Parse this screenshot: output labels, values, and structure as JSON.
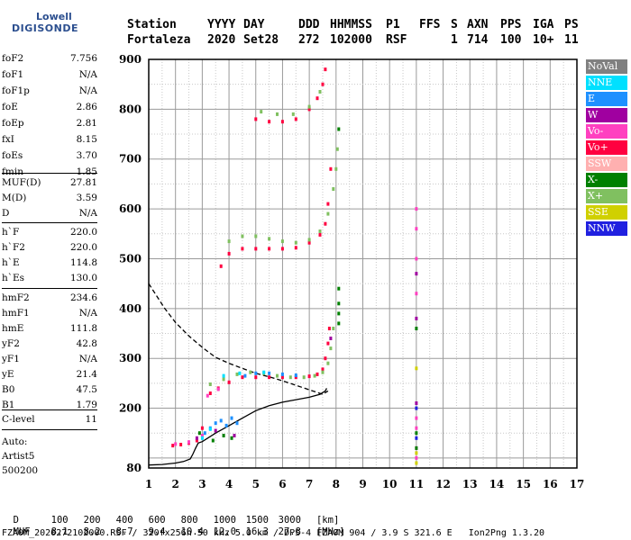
{
  "logo": {
    "lowell": "Lowell",
    "digisonde": "DIGISONDE"
  },
  "header": {
    "labels": [
      "Station",
      "YYYY",
      "DAY",
      "DDD",
      "HHMMSS",
      "P1",
      "FFS",
      "S",
      "AXN",
      "PPS",
      "IGA",
      "PS"
    ],
    "values": [
      "Fortaleza",
      "2020",
      "Set28",
      "272",
      "102000",
      "RSF",
      "1",
      "714",
      "100",
      "10+",
      "11"
    ]
  },
  "params": {
    "g1": [
      {
        "name": "foF2",
        "value": "7.756"
      },
      {
        "name": "foF1",
        "value": "N/A"
      },
      {
        "name": "foF1p",
        "value": "N/A"
      },
      {
        "name": "foE",
        "value": "2.86"
      },
      {
        "name": "foEp",
        "value": "2.81"
      },
      {
        "name": "fxI",
        "value": "8.15"
      },
      {
        "name": "foEs",
        "value": "3.70"
      },
      {
        "name": "fmin",
        "value": "1.85"
      }
    ],
    "g2": [
      {
        "name": "MUF(D)",
        "value": "27.81"
      },
      {
        "name": "M(D)",
        "value": "3.59"
      },
      {
        "name": "D",
        "value": "N/A"
      }
    ],
    "g3": [
      {
        "name": "h`F",
        "value": "220.0"
      },
      {
        "name": "h`F2",
        "value": "220.0"
      },
      {
        "name": "h`E",
        "value": "114.8"
      },
      {
        "name": "h`Es",
        "value": "130.0"
      }
    ],
    "g4": [
      {
        "name": "hmF2",
        "value": "234.6"
      },
      {
        "name": "hmF1",
        "value": "N/A"
      },
      {
        "name": "hmE",
        "value": "111.8"
      },
      {
        "name": "yF2",
        "value": "42.8"
      },
      {
        "name": "yF1",
        "value": "N/A"
      },
      {
        "name": "yE",
        "value": "21.4"
      },
      {
        "name": "B0",
        "value": "47.5"
      },
      {
        "name": "B1",
        "value": "1.79"
      }
    ],
    "g5": [
      {
        "name": "C-level",
        "value": "11"
      }
    ]
  },
  "autoscale": {
    "line1": "Auto:",
    "line2": "Artist5",
    "line3": "500200"
  },
  "legend": [
    {
      "label": "NoVal",
      "color": "#808080"
    },
    {
      "label": "NNE",
      "color": "#00e0ff"
    },
    {
      "label": "E",
      "color": "#1e90ff"
    },
    {
      "label": "W",
      "color": "#a000a0"
    },
    {
      "label": "Vo-",
      "color": "#ff40c0"
    },
    {
      "label": "Vo+",
      "color": "#ff0040"
    },
    {
      "label": "SSW",
      "color": "#ffb0b0"
    },
    {
      "label": "X-",
      "color": "#008000"
    },
    {
      "label": "X+",
      "color": "#80c060"
    },
    {
      "label": "SSE",
      "color": "#d0d000"
    },
    {
      "label": "NNW",
      "color": "#2020e0"
    }
  ],
  "muf_table": {
    "d_label": "D",
    "d_values": [
      "100",
      "200",
      "400",
      "600",
      "800",
      "1000",
      "1500",
      "3000"
    ],
    "d_unit": "[km]",
    "muf_label": "MUF",
    "muf_values": [
      "8.1",
      "8.2",
      "8.7",
      "9.4",
      "10.4",
      "12.0",
      "16.3",
      "27.8"
    ],
    "muf_unit": "[MHz]"
  },
  "footer": "FZA0M_2020272102000.RSF / 320fx256h 50 kHz 5.0 km / DPS-4 FZA0M 904 / 3.9 S 321.6 E   Ion2Png 1.3.20",
  "chart_data": {
    "type": "scatter",
    "xlim": [
      1,
      17
    ],
    "ylim": [
      80,
      900
    ],
    "x_ticks": [
      "1",
      "2",
      "3",
      "4",
      "5",
      "6",
      "7",
      "8",
      "9",
      "10",
      "11",
      "12",
      "13",
      "14",
      "15",
      "16",
      "17"
    ],
    "y_ticks": [
      "80",
      "200",
      "300",
      "400",
      "500",
      "600",
      "700",
      "800",
      "900"
    ],
    "grid": true,
    "series": [
      {
        "name": "Vo+",
        "color": "#ff0040",
        "x": [
          1.9,
          2.2,
          2.5,
          2.8,
          3.0,
          3.3,
          3.6,
          4.0,
          4.5,
          5.0,
          5.5,
          6.0,
          6.5,
          7.0,
          7.3,
          7.5,
          7.6,
          7.7,
          7.75,
          3.7,
          4.0,
          4.5,
          5.0,
          5.5,
          6.0,
          6.5,
          7.0,
          7.4,
          7.6,
          7.7,
          7.8,
          5.0,
          5.5,
          6.0,
          6.5,
          7.0,
          7.3,
          7.5,
          7.6
        ],
        "y": [
          125,
          127,
          130,
          135,
          160,
          230,
          240,
          252,
          262,
          262,
          262,
          262,
          262,
          264,
          268,
          278,
          300,
          330,
          360,
          485,
          510,
          520,
          520,
          520,
          520,
          522,
          532,
          548,
          570,
          610,
          680,
          780,
          775,
          775,
          780,
          800,
          822,
          850,
          880
        ]
      },
      {
        "name": "X+",
        "color": "#80c060",
        "x": [
          3.3,
          3.8,
          4.3,
          4.8,
          5.3,
          5.8,
          6.3,
          6.8,
          7.2,
          7.5,
          7.7,
          7.8,
          7.9,
          4.0,
          4.5,
          5.0,
          5.5,
          6.0,
          6.5,
          7.0,
          7.4,
          7.7,
          7.9,
          8.0,
          8.05,
          5.2,
          5.8,
          6.4,
          7.0,
          7.4
        ],
        "y": [
          248,
          258,
          268,
          272,
          270,
          265,
          262,
          262,
          265,
          272,
          290,
          320,
          360,
          535,
          545,
          545,
          540,
          535,
          532,
          538,
          555,
          590,
          640,
          680,
          720,
          795,
          790,
          790,
          805,
          835
        ]
      },
      {
        "name": "E",
        "color": "#1e90ff",
        "x": [
          3.1,
          3.3,
          3.5,
          3.7,
          3.9,
          4.1,
          4.3,
          4.6,
          5.0,
          5.5,
          6.0,
          6.5
        ],
        "y": [
          150,
          160,
          170,
          175,
          165,
          180,
          170,
          265,
          270,
          270,
          268,
          266
        ]
      },
      {
        "name": "Vo-",
        "color": "#ff40c0",
        "x": [
          2.0,
          2.5,
          3.0,
          3.2,
          3.6,
          11.0,
          11.0,
          11.0,
          11.0,
          11.0,
          11.0,
          11.0,
          11.0
        ],
        "y": [
          128,
          132,
          145,
          225,
          238,
          100,
          120,
          160,
          180,
          430,
          500,
          560,
          600
        ]
      },
      {
        "name": "X-",
        "color": "#008000",
        "x": [
          2.9,
          3.4,
          3.8,
          4.1,
          8.1,
          8.1,
          8.1,
          8.1,
          8.1,
          11.0,
          11.0,
          11.0
        ],
        "y": [
          150,
          135,
          145,
          140,
          370,
          390,
          410,
          440,
          760,
          120,
          150,
          360
        ]
      },
      {
        "name": "W",
        "color": "#a000a0",
        "x": [
          2.8,
          3.5,
          4.2,
          7.8,
          11.0,
          11.0,
          11.0
        ],
        "y": [
          140,
          155,
          145,
          340,
          210,
          380,
          470
        ]
      },
      {
        "name": "NNE",
        "color": "#00e0ff",
        "x": [
          3.0,
          3.3,
          3.8,
          4.4,
          5.3
        ],
        "y": [
          140,
          158,
          265,
          270,
          272
        ]
      },
      {
        "name": "SSE",
        "color": "#d0d000",
        "x": [
          11.0,
          11.0,
          11.0
        ],
        "y": [
          90,
          110,
          280
        ]
      },
      {
        "name": "NNW",
        "color": "#2020e0",
        "x": [
          11.0,
          11.0
        ],
        "y": [
          140,
          200
        ]
      }
    ],
    "curves": [
      {
        "name": "profile",
        "style": "solid",
        "color": "#000000",
        "x": [
          1.0,
          1.5,
          2.0,
          2.3,
          2.55,
          2.65,
          2.75,
          2.85,
          3.0,
          3.5,
          4.0,
          4.5,
          5.0,
          5.5,
          6.0,
          6.5,
          7.0,
          7.4,
          7.6,
          7.65
        ],
        "y": [
          86,
          87,
          90,
          93,
          98,
          108,
          120,
          130,
          133,
          150,
          165,
          180,
          195,
          205,
          212,
          217,
          222,
          228,
          234.6,
          240
        ]
      },
      {
        "name": "model",
        "style": "dashed",
        "color": "#000000",
        "x": [
          1.0,
          1.3,
          1.6,
          2.0,
          2.5,
          3.0,
          3.5,
          4.0,
          4.5,
          5.0,
          5.5,
          6.0,
          6.5,
          7.0,
          7.5,
          7.7
        ],
        "y": [
          450,
          425,
          400,
          372,
          345,
          322,
          302,
          290,
          280,
          270,
          263,
          255,
          246,
          237,
          228,
          234.6
        ]
      }
    ]
  }
}
